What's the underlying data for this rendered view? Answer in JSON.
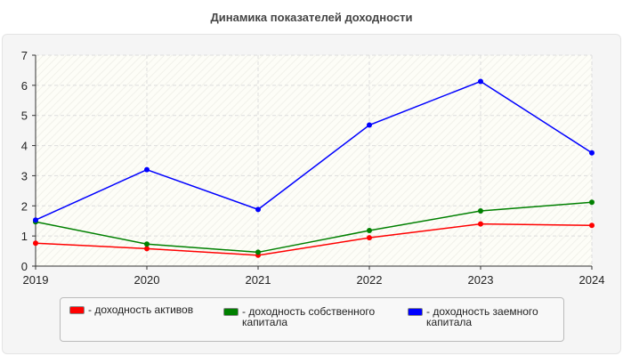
{
  "chart_data": {
    "type": "line",
    "title": "Динамика показателей доходности",
    "x": [
      "2019",
      "2020",
      "2021",
      "2022",
      "2023",
      "2024"
    ],
    "ylim": [
      0,
      7
    ],
    "yticks": [
      0,
      1,
      2,
      3,
      4,
      5,
      6,
      7
    ],
    "grid": true,
    "legend_position": "bottom",
    "series": [
      {
        "name": "- доходность активов",
        "color": "#ff0000",
        "values": [
          0.76,
          0.58,
          0.36,
          0.94,
          1.4,
          1.35
        ]
      },
      {
        "name": "- доходность собственного капитала",
        "color": "#008000",
        "values": [
          1.47,
          0.73,
          0.46,
          1.18,
          1.83,
          2.12
        ]
      },
      {
        "name": "- доходность заемного капитала",
        "color": "#0000ff",
        "values": [
          1.53,
          3.2,
          1.88,
          4.68,
          6.13,
          3.76
        ]
      }
    ]
  }
}
